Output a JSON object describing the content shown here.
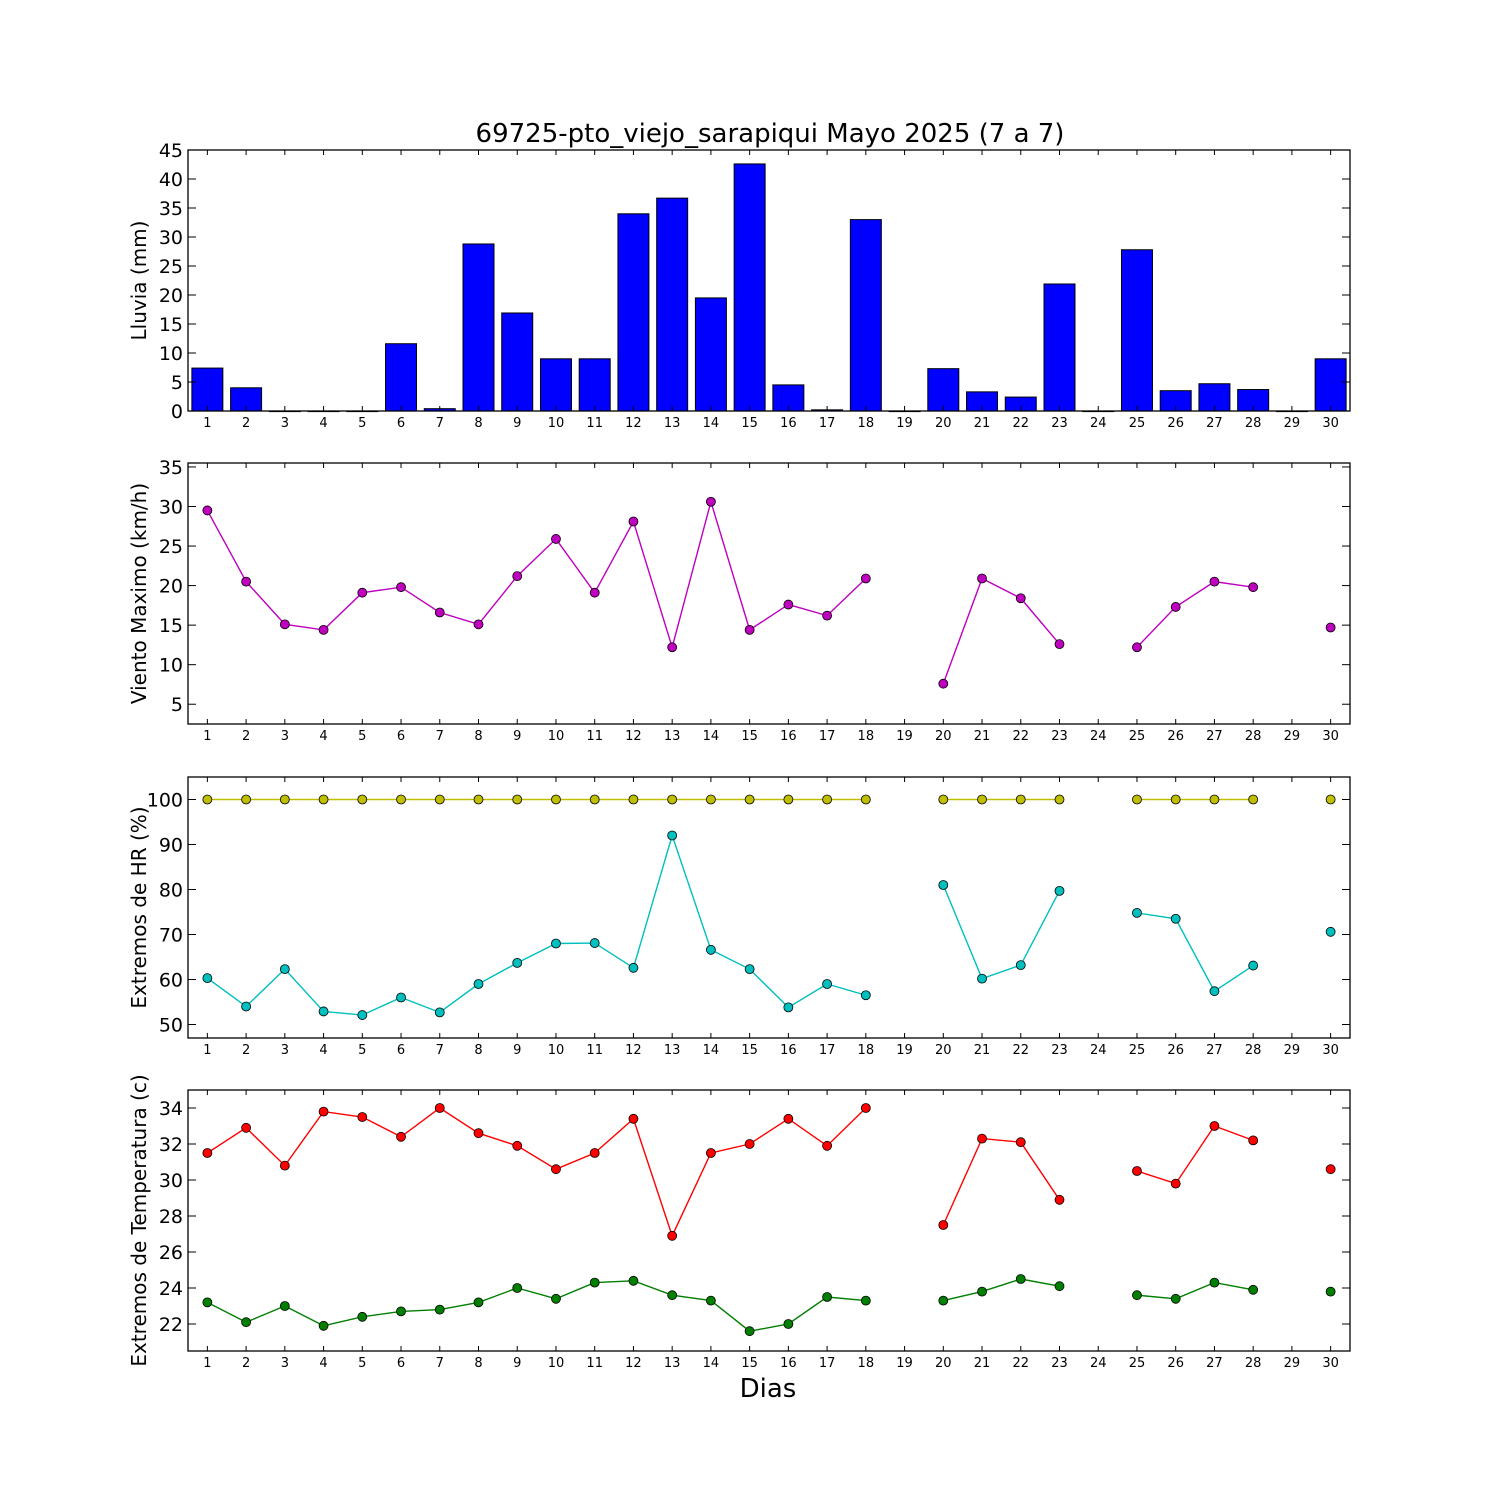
{
  "title": "69725-pto_viejo_sarapiqui Mayo 2025  (7 a 7)",
  "xlabel": "Dias",
  "days": [
    1,
    2,
    3,
    4,
    5,
    6,
    7,
    8,
    9,
    10,
    11,
    12,
    13,
    14,
    15,
    16,
    17,
    18,
    19,
    20,
    21,
    22,
    23,
    24,
    25,
    26,
    27,
    28,
    29,
    30
  ],
  "chart_data": [
    {
      "type": "bar",
      "ylabel": "Lluvia (mm)",
      "ylim": [
        0,
        45
      ],
      "yticks": [
        0,
        5,
        10,
        15,
        20,
        25,
        30,
        35,
        40,
        45
      ],
      "xlim": [
        0.5,
        30.5
      ],
      "color": "#0000ff",
      "x": [
        1,
        2,
        3,
        4,
        5,
        6,
        7,
        8,
        9,
        10,
        11,
        12,
        13,
        14,
        15,
        16,
        17,
        18,
        19,
        20,
        21,
        22,
        23,
        24,
        25,
        26,
        27,
        28,
        29,
        30
      ],
      "values": [
        7.4,
        4.0,
        0.0,
        0.0,
        0.0,
        11.6,
        0.4,
        28.8,
        16.9,
        9.0,
        9.0,
        34.0,
        36.7,
        19.5,
        42.6,
        4.5,
        0.2,
        33.0,
        0.0,
        7.3,
        3.3,
        2.4,
        21.9,
        0.0,
        27.8,
        3.5,
        4.7,
        3.7,
        0.0,
        9.0
      ]
    },
    {
      "type": "line",
      "ylabel": "Viento Maximo (km/h)",
      "ylim": [
        2.5,
        35.5
      ],
      "yticks": [
        5,
        10,
        15,
        20,
        25,
        30,
        35
      ],
      "xlim": [
        0.5,
        30.5
      ],
      "series": [
        {
          "color": "#bf00bf",
          "x": [
            1,
            2,
            3,
            4,
            5,
            6,
            7,
            8,
            9,
            10,
            11,
            12,
            13,
            14,
            15,
            16,
            17,
            18,
            19,
            20,
            21,
            22,
            23,
            24,
            25,
            26,
            27,
            28,
            29,
            30
          ],
          "values": [
            29.5,
            20.5,
            15.1,
            14.4,
            19.1,
            19.8,
            16.6,
            15.1,
            21.2,
            25.9,
            19.1,
            28.1,
            12.2,
            30.6,
            14.4,
            17.6,
            16.2,
            20.9,
            null,
            7.6,
            20.9,
            18.4,
            12.6,
            null,
            12.2,
            17.3,
            20.5,
            19.8,
            null,
            14.7
          ]
        }
      ]
    },
    {
      "type": "line",
      "ylabel": "Extremos de HR (%)",
      "ylim": [
        47,
        105
      ],
      "yticks": [
        50,
        60,
        70,
        80,
        90,
        100
      ],
      "xlim": [
        0.5,
        30.5
      ],
      "series": [
        {
          "color": "#bfbf00",
          "x": [
            1,
            2,
            3,
            4,
            5,
            6,
            7,
            8,
            9,
            10,
            11,
            12,
            13,
            14,
            15,
            16,
            17,
            18,
            19,
            20,
            21,
            22,
            23,
            24,
            25,
            26,
            27,
            28,
            29,
            30
          ],
          "values": [
            100,
            100,
            100,
            100,
            100,
            100,
            100,
            100,
            100,
            100,
            100,
            100,
            100,
            100,
            100,
            100,
            100,
            100,
            null,
            100,
            100,
            100,
            100,
            null,
            100,
            100,
            100,
            100,
            null,
            100
          ]
        },
        {
          "color": "#00bfbf",
          "x": [
            1,
            2,
            3,
            4,
            5,
            6,
            7,
            8,
            9,
            10,
            11,
            12,
            13,
            14,
            15,
            16,
            17,
            18,
            19,
            20,
            21,
            22,
            23,
            24,
            25,
            26,
            27,
            28,
            29,
            30
          ],
          "values": [
            60.3,
            54.0,
            62.3,
            52.9,
            52.1,
            56.0,
            52.7,
            59.0,
            63.7,
            68.0,
            68.1,
            62.6,
            92.0,
            66.6,
            62.3,
            53.8,
            59.0,
            56.5,
            null,
            81.0,
            60.2,
            63.2,
            79.7,
            null,
            74.8,
            73.5,
            57.4,
            63.1,
            null,
            70.6
          ]
        }
      ]
    },
    {
      "type": "line",
      "ylabel": "Extremos de Temperatura (c)",
      "ylim": [
        20.5,
        35
      ],
      "yticks": [
        22,
        24,
        26,
        28,
        30,
        32,
        34
      ],
      "xlim": [
        0.5,
        30.5
      ],
      "series": [
        {
          "color": "#ff0000",
          "x": [
            1,
            2,
            3,
            4,
            5,
            6,
            7,
            8,
            9,
            10,
            11,
            12,
            13,
            14,
            15,
            16,
            17,
            18,
            19,
            20,
            21,
            22,
            23,
            24,
            25,
            26,
            27,
            28,
            29,
            30
          ],
          "values": [
            31.5,
            32.9,
            30.8,
            33.8,
            33.5,
            32.4,
            34.0,
            32.6,
            31.9,
            30.6,
            31.5,
            33.4,
            26.9,
            31.5,
            32.0,
            33.4,
            31.9,
            34.0,
            null,
            27.5,
            32.3,
            32.1,
            28.9,
            null,
            30.5,
            29.8,
            33.0,
            32.2,
            null,
            30.6
          ]
        },
        {
          "color": "#007f00",
          "x": [
            1,
            2,
            3,
            4,
            5,
            6,
            7,
            8,
            9,
            10,
            11,
            12,
            13,
            14,
            15,
            16,
            17,
            18,
            19,
            20,
            21,
            22,
            23,
            24,
            25,
            26,
            27,
            28,
            29,
            30
          ],
          "values": [
            23.2,
            22.1,
            23.0,
            21.9,
            22.4,
            22.7,
            22.8,
            23.2,
            24.0,
            23.4,
            24.3,
            24.4,
            23.6,
            23.3,
            21.6,
            22.0,
            23.5,
            23.3,
            null,
            23.3,
            23.8,
            24.5,
            24.1,
            null,
            23.6,
            23.4,
            24.3,
            23.9,
            null,
            23.8
          ]
        }
      ]
    }
  ]
}
